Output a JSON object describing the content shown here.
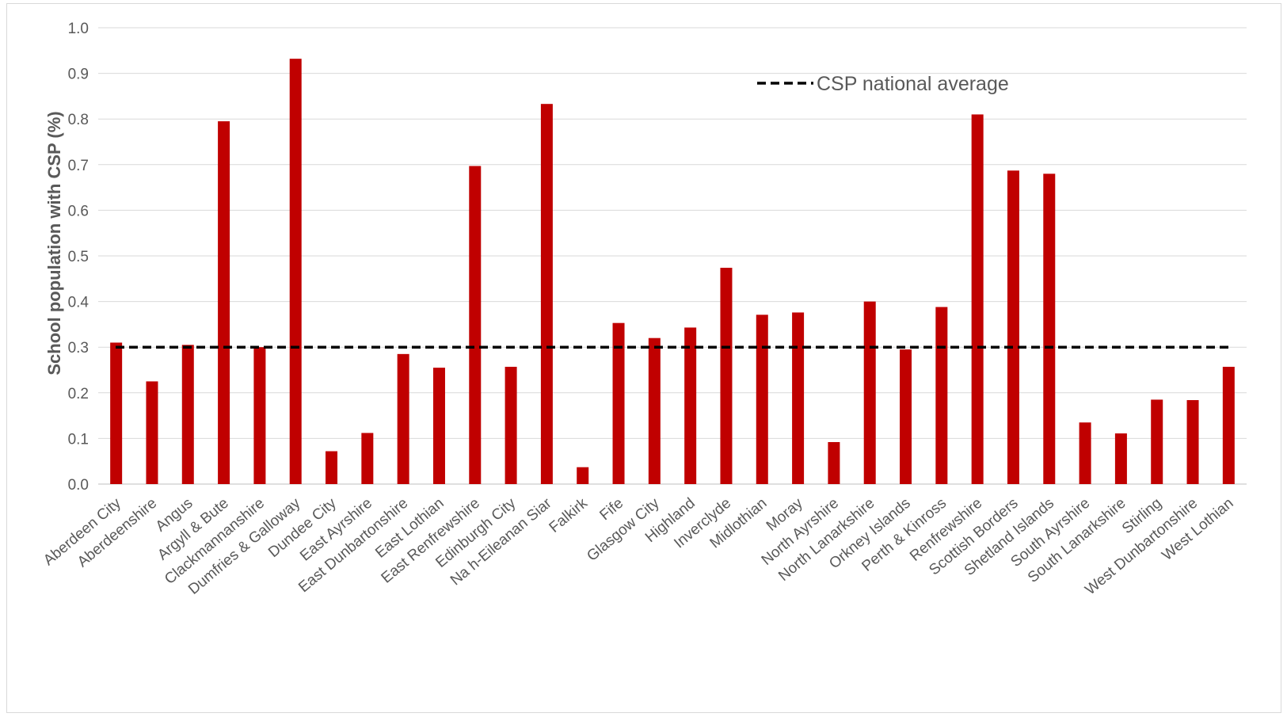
{
  "chart_data": {
    "type": "bar",
    "title": "",
    "xlabel": "",
    "ylabel": "School population with CSP (%)",
    "ylim": [
      0,
      1.0
    ],
    "yticks": [
      "0.0",
      "0.1",
      "0.2",
      "0.3",
      "0.4",
      "0.5",
      "0.6",
      "0.7",
      "0.8",
      "0.9",
      "1.0"
    ],
    "grid": true,
    "legend_position": "top-right",
    "bar_color": "#c00000",
    "reference_line_color": "#000000",
    "categories": [
      "Aberdeen City",
      "Aberdeenshire",
      "Angus",
      "Argyll & Bute",
      "Clackmannanshire",
      "Dumfries & Galloway",
      "Dundee City",
      "East Ayrshire",
      "East Dunbartonshire",
      "East Lothian",
      "East Renfrewshire",
      "Edinburgh City",
      "Na h-Eileanan Siar",
      "Falkirk",
      "Fife",
      "Glasgow City",
      "Highland",
      "Inverclyde",
      "Midlothian",
      "Moray",
      "North Ayrshire",
      "North Lanarkshire",
      "Orkney Islands",
      "Perth & Kinross",
      "Renfrewshire",
      "Scottish Borders",
      "Shetland Islands",
      "South Ayrshire",
      "South Lanarkshire",
      "Stirling",
      "West Dunbartonshire",
      "West Lothian"
    ],
    "values": [
      0.31,
      0.225,
      0.305,
      0.795,
      0.3,
      0.932,
      0.072,
      0.112,
      0.285,
      0.255,
      0.697,
      0.257,
      0.833,
      0.037,
      0.353,
      0.32,
      0.343,
      0.474,
      0.371,
      0.376,
      0.092,
      0.4,
      0.295,
      0.388,
      0.81,
      0.687,
      0.68,
      0.135,
      0.111,
      0.185,
      0.184,
      0.257
    ],
    "reference_line": {
      "name": "CSP national average",
      "value": 0.3,
      "style": "dashed"
    }
  }
}
